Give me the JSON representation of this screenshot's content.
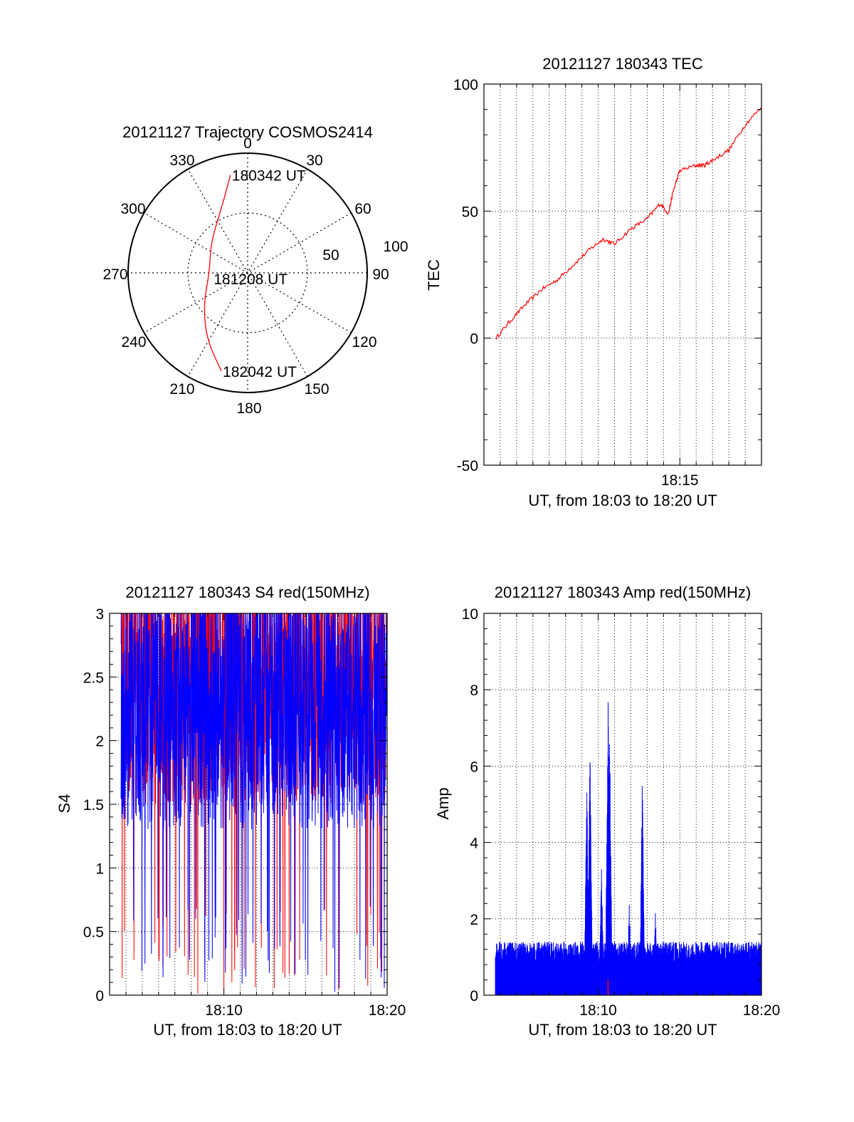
{
  "chart_data": [
    {
      "id": "trajectory",
      "type": "polar",
      "title": "20121127 Trajectory COSMOS2414",
      "angle_labels": [
        "0",
        "30",
        "60",
        "90",
        "120",
        "150",
        "180",
        "210",
        "240",
        "270",
        "300",
        "330"
      ],
      "radius_labels": [
        "50",
        "100"
      ],
      "rlim": [
        0,
        100
      ],
      "grid": true,
      "series": [
        {
          "color": "#ff0000",
          "points": [
            {
              "az": 350,
              "r": 83
            },
            {
              "az": 345,
              "r": 70
            },
            {
              "az": 335,
              "r": 55
            },
            {
              "az": 310,
              "r": 40
            },
            {
              "az": 270,
              "r": 32
            },
            {
              "az": 235,
              "r": 45
            },
            {
              "az": 212,
              "r": 65
            },
            {
              "az": 195,
              "r": 85
            }
          ]
        }
      ],
      "annotations": [
        {
          "text": "180342 UT",
          "az": 350,
          "r": 83
        },
        {
          "text": "181208 UT",
          "az": 270,
          "r": 32
        },
        {
          "text": "182042 UT",
          "az": 195,
          "r": 85
        }
      ]
    },
    {
      "id": "tec",
      "type": "line",
      "title": "20121127 180343 TEC",
      "xlabel": "UT, from 18:03 to 18:20 UT",
      "ylabel": "TEC",
      "xlim_minutes": [
        3,
        20
      ],
      "ylim": [
        -50,
        100
      ],
      "yticks": [
        "-50",
        "0",
        "50",
        "100"
      ],
      "xticks": [
        {
          "min": 15,
          "label": "18:15"
        }
      ],
      "grid": true,
      "series": [
        {
          "color": "#ff0000",
          "x_minutes": [
            3.75,
            4.5,
            5.5,
            6.5,
            7.5,
            8.5,
            9.5,
            10.3,
            11,
            12,
            13,
            13.8,
            14.3,
            14.6,
            15,
            16,
            16.5,
            17,
            18,
            19,
            20
          ],
          "y": [
            0,
            6,
            13,
            19,
            23,
            29,
            35,
            39,
            37,
            43,
            47,
            53,
            49,
            58,
            66,
            68,
            68,
            70,
            74,
            84,
            91
          ]
        }
      ]
    },
    {
      "id": "s4",
      "type": "line",
      "title": "20121127 180343 S4 red(150MHz)",
      "xlabel": "UT, from 18:03 to 18:20 UT",
      "ylabel": "S4",
      "xlim_minutes": [
        3,
        20
      ],
      "ylim": [
        0,
        3
      ],
      "yticks": [
        "0",
        "0.5",
        "1",
        "1.5",
        "2",
        "2.5",
        "3"
      ],
      "xticks": [
        {
          "min": 10,
          "label": "18:10"
        },
        {
          "min": 20,
          "label": "18:20"
        }
      ],
      "grid": true,
      "series": [
        {
          "color": "#ff0000",
          "style": "noisy-spikes",
          "base": 2.4,
          "spread": 0.9,
          "xrange_minutes": [
            3.7,
            20
          ]
        },
        {
          "color": "#0000ff",
          "style": "noisy-spikes",
          "base": 2.2,
          "spread": 0.9,
          "xrange_minutes": [
            3.7,
            20
          ]
        }
      ]
    },
    {
      "id": "amp",
      "type": "line",
      "title": "20121127 180343 Amp red(150MHz)",
      "xlabel": "UT, from 18:03 to 18:20 UT",
      "ylabel": "Amp",
      "xlim_minutes": [
        3,
        20
      ],
      "ylim": [
        0,
        10
      ],
      "yticks": [
        "0",
        "2",
        "4",
        "6",
        "8",
        "10"
      ],
      "xticks": [
        {
          "min": 10,
          "label": "18:10"
        },
        {
          "min": 20,
          "label": "18:20"
        }
      ],
      "grid": true,
      "series": [
        {
          "color": "#0000ff",
          "style": "noise-band",
          "base": 0.8,
          "spread": 0.6,
          "xrange_minutes": [
            3.7,
            20
          ],
          "peaks": [
            {
              "x_minutes": 9.3,
              "y": 5.8
            },
            {
              "x_minutes": 9.5,
              "y": 6.8
            },
            {
              "x_minutes": 10.6,
              "y": 8.3
            },
            {
              "x_minutes": 10.7,
              "y": 7.5
            },
            {
              "x_minutes": 12.7,
              "y": 5.9
            },
            {
              "x_minutes": 10.2,
              "y": 3.4
            },
            {
              "x_minutes": 11.9,
              "y": 2.5
            },
            {
              "x_minutes": 13.5,
              "y": 2.2
            }
          ]
        },
        {
          "color": "#ff0000",
          "style": "baseline",
          "spikes": [
            {
              "x_minutes": 10.6,
              "y": 0.4
            }
          ]
        }
      ]
    }
  ]
}
